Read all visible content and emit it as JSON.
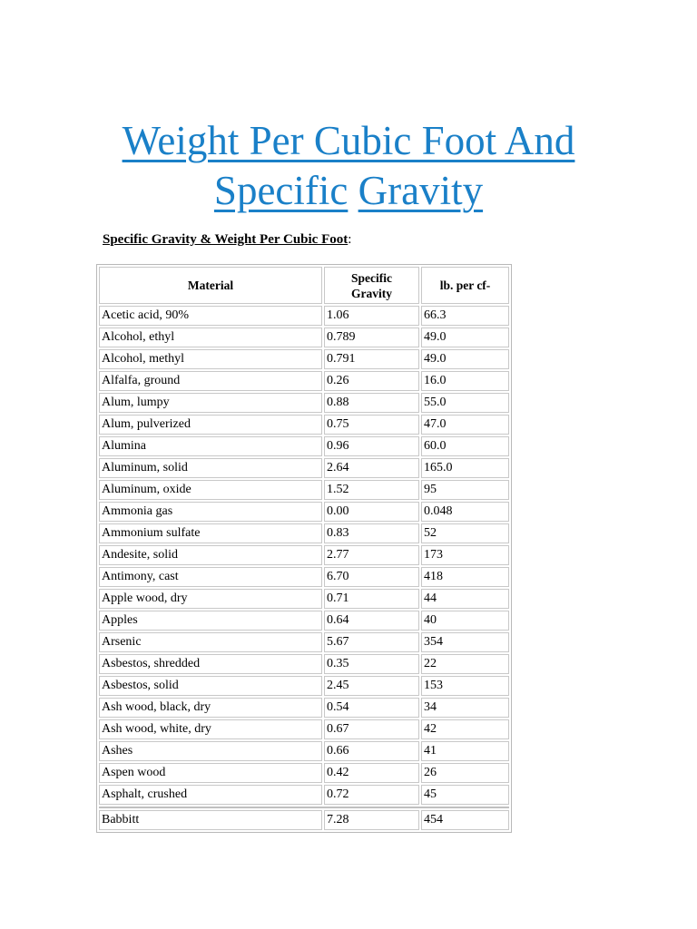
{
  "document": {
    "title_words": [
      "Weight Per Cubic Foot And",
      "Specific",
      "Gravity"
    ],
    "subtitle": "Specific Gravity & Weight Per Cubic Foot",
    "subtitle_colon": ":"
  },
  "table": {
    "headers": {
      "material": "Material",
      "specific_gravity_line1": "Specific",
      "specific_gravity_line2": "Gravity",
      "lb_per_cf": "lb. per cf-"
    },
    "rows": [
      {
        "material": "Acetic acid, 90%",
        "sg": "1.06",
        "lb": "66.3"
      },
      {
        "material": "Alcohol, ethyl",
        "sg": "0.789",
        "lb": "49.0"
      },
      {
        "material": "Alcohol, methyl",
        "sg": "0.791",
        "lb": "49.0"
      },
      {
        "material": "Alfalfa, ground",
        "sg": "0.26",
        "lb": "16.0"
      },
      {
        "material": "Alum, lumpy",
        "sg": "0.88",
        "lb": "55.0"
      },
      {
        "material": "Alum, pulverized",
        "sg": "0.75",
        "lb": "47.0"
      },
      {
        "material": "Alumina",
        "sg": "0.96",
        "lb": "60.0"
      },
      {
        "material": "Aluminum, solid",
        "sg": "2.64",
        "lb": "165.0"
      },
      {
        "material": "Aluminum, oxide",
        "sg": "1.52",
        "lb": "95"
      },
      {
        "material": "Ammonia gas",
        "sg": "0.00",
        "lb": "0.048"
      },
      {
        "material": "Ammonium sulfate",
        "sg": "0.83",
        "lb": "52"
      },
      {
        "material": "Andesite, solid",
        "sg": "2.77",
        "lb": "173"
      },
      {
        "material": "Antimony, cast",
        "sg": "6.70",
        "lb": "418"
      },
      {
        "material": "Apple wood, dry",
        "sg": "0.71",
        "lb": "44"
      },
      {
        "material": "Apples",
        "sg": "0.64",
        "lb": "40"
      },
      {
        "material": "Arsenic",
        "sg": "5.67",
        "lb": "354"
      },
      {
        "material": "Asbestos, shredded",
        "sg": "0.35",
        "lb": "22"
      },
      {
        "material": "Asbestos, solid",
        "sg": "2.45",
        "lb": "153"
      },
      {
        "material": "Ash wood, black, dry",
        "sg": "0.54",
        "lb": "34"
      },
      {
        "material": "Ash wood, white, dry",
        "sg": "0.67",
        "lb": "42"
      },
      {
        "material": "Ashes",
        "sg": "0.66",
        "lb": "41"
      },
      {
        "material": "Aspen wood",
        "sg": "0.42",
        "lb": "26"
      },
      {
        "material": "Asphalt, crushed",
        "sg": "0.72",
        "lb": "45"
      }
    ],
    "rows_after_break": [
      {
        "material": "Babbitt",
        "sg": "7.28",
        "lb": "454"
      }
    ]
  },
  "colors": {
    "title_link": "#1a80c8",
    "cell_border": "#c8c8c8"
  }
}
